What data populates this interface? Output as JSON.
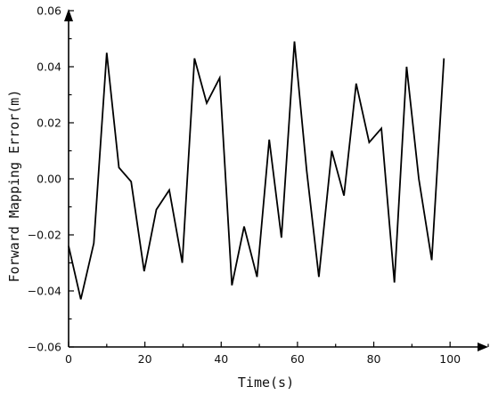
{
  "chart_data": {
    "type": "line",
    "title": "",
    "xlabel": "Time(s)",
    "ylabel": "Forward Mapping Error(m)",
    "xlim": [
      0,
      110
    ],
    "ylim": [
      -0.06,
      0.06
    ],
    "x_ticks": [
      0,
      20,
      40,
      60,
      80,
      100
    ],
    "x_tick_labels": [
      "0",
      "20",
      "40",
      "60",
      "80",
      "100"
    ],
    "y_ticks": [
      -0.06,
      -0.04,
      -0.02,
      0.0,
      0.02,
      0.04,
      0.06
    ],
    "y_tick_labels": [
      "−0.06",
      "−0.04",
      "−0.02",
      "0.00",
      "0.02",
      "0.04",
      "0.06"
    ],
    "grid": false,
    "legend": "none",
    "series": [
      {
        "color": "#000000",
        "x": [
          0,
          3.2,
          6.6,
          10.0,
          13.2,
          16.4,
          19.8,
          23.0,
          26.4,
          29.8,
          33.0,
          36.2,
          39.6,
          42.8,
          46.0,
          49.4,
          52.6,
          55.8,
          59.2,
          62.4,
          65.6,
          69.0,
          72.2,
          75.4,
          78.8,
          82.0,
          85.4,
          88.6,
          91.8,
          95.2,
          98.4
        ],
        "y": [
          -0.024,
          -0.043,
          -0.023,
          0.045,
          0.004,
          -0.001,
          -0.033,
          -0.011,
          -0.004,
          -0.03,
          0.043,
          0.027,
          0.036,
          -0.038,
          -0.017,
          -0.035,
          0.014,
          -0.021,
          0.049,
          0.003,
          -0.035,
          0.01,
          -0.006,
          0.034,
          0.013,
          0.018,
          -0.037,
          0.04,
          0.0,
          -0.029,
          0.043
        ]
      }
    ]
  }
}
